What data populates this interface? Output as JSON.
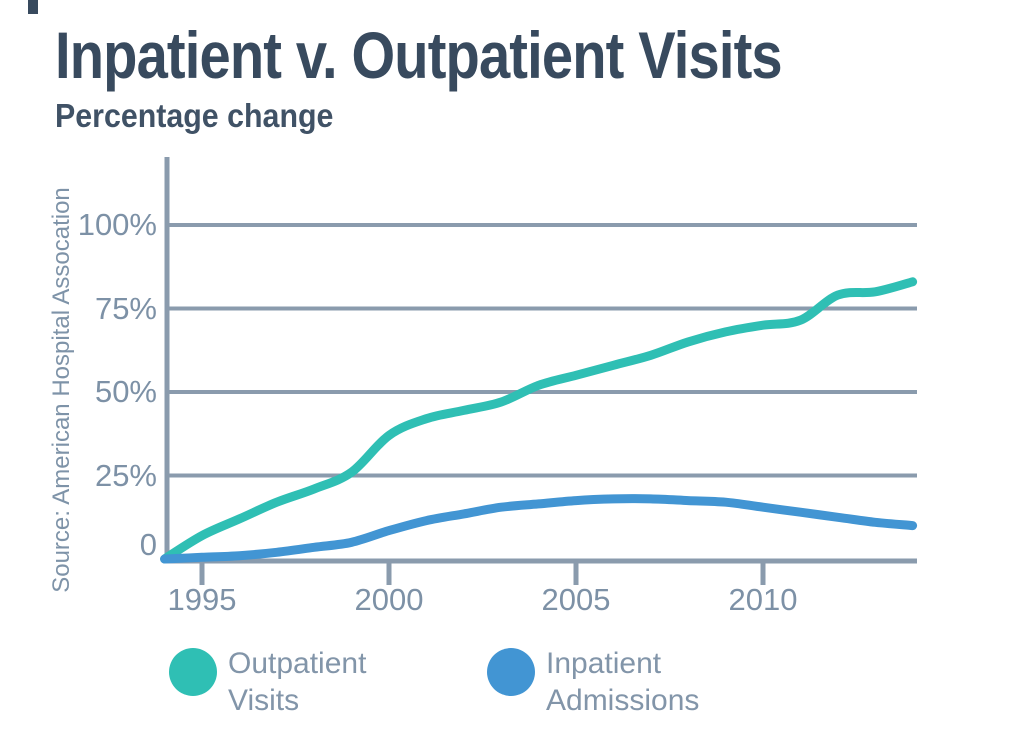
{
  "source_note": "Source: American Hospital Assocation",
  "colors": {
    "background": "#ffffff",
    "title_text": "#384a5e",
    "subtitle_text": "#405266",
    "axis_text": "#7d91a6",
    "legend_text": "#8295a9",
    "source_text": "#7e93a8",
    "grid_line": "#8a9bad",
    "outpatient_teal": "#2fbfb4",
    "inpatient_blue": "#4295d3"
  },
  "legend": {
    "items": [
      {
        "label": "Outpatient\nVisits",
        "color": "#2fbfb4"
      },
      {
        "label": "Inpatient\nAdmissions",
        "color": "#4295d3"
      }
    ]
  },
  "chart_data": {
    "type": "line",
    "title": "Inpatient v. Outpatient Visits",
    "subtitle": "Percentage change",
    "xlabel": "",
    "ylabel": "Percentage change",
    "x": [
      1994,
      1995,
      1996,
      1997,
      1998,
      1999,
      2000,
      2001,
      2002,
      2003,
      2004,
      2005,
      2006,
      2007,
      2008,
      2009,
      2010,
      2011,
      2012,
      2013,
      2014
    ],
    "series": [
      {
        "name": "Outpatient Visits",
        "color": "#2fbfb4",
        "values": [
          0,
          7,
          12,
          17,
          21,
          26,
          37,
          42,
          44.5,
          47,
          52,
          55,
          58,
          61,
          65,
          68,
          70,
          71.5,
          79,
          80,
          83
        ]
      },
      {
        "name": "Inpatient Admissions",
        "color": "#4295d3",
        "values": [
          0,
          0.5,
          1,
          2,
          3.5,
          5,
          8.5,
          11.5,
          13.5,
          15.5,
          16.5,
          17.5,
          18,
          18,
          17.5,
          17,
          15.5,
          14,
          12.5,
          11,
          10
        ]
      }
    ],
    "yticks": [
      {
        "value": 100,
        "label": "100%"
      },
      {
        "value": 75,
        "label": "75%"
      },
      {
        "value": 50,
        "label": "50%"
      },
      {
        "value": 25,
        "label": "25%"
      },
      {
        "value": 0,
        "label": "0"
      }
    ],
    "xticks": [
      {
        "value": 1995,
        "label": "1995"
      },
      {
        "value": 2000,
        "label": "2000"
      },
      {
        "value": 2005,
        "label": "2005"
      },
      {
        "value": 2010,
        "label": "2010"
      }
    ],
    "xlim": [
      1994,
      2014.15
    ],
    "ylim": [
      0,
      110
    ],
    "grid": true,
    "legend_position": "bottom"
  }
}
